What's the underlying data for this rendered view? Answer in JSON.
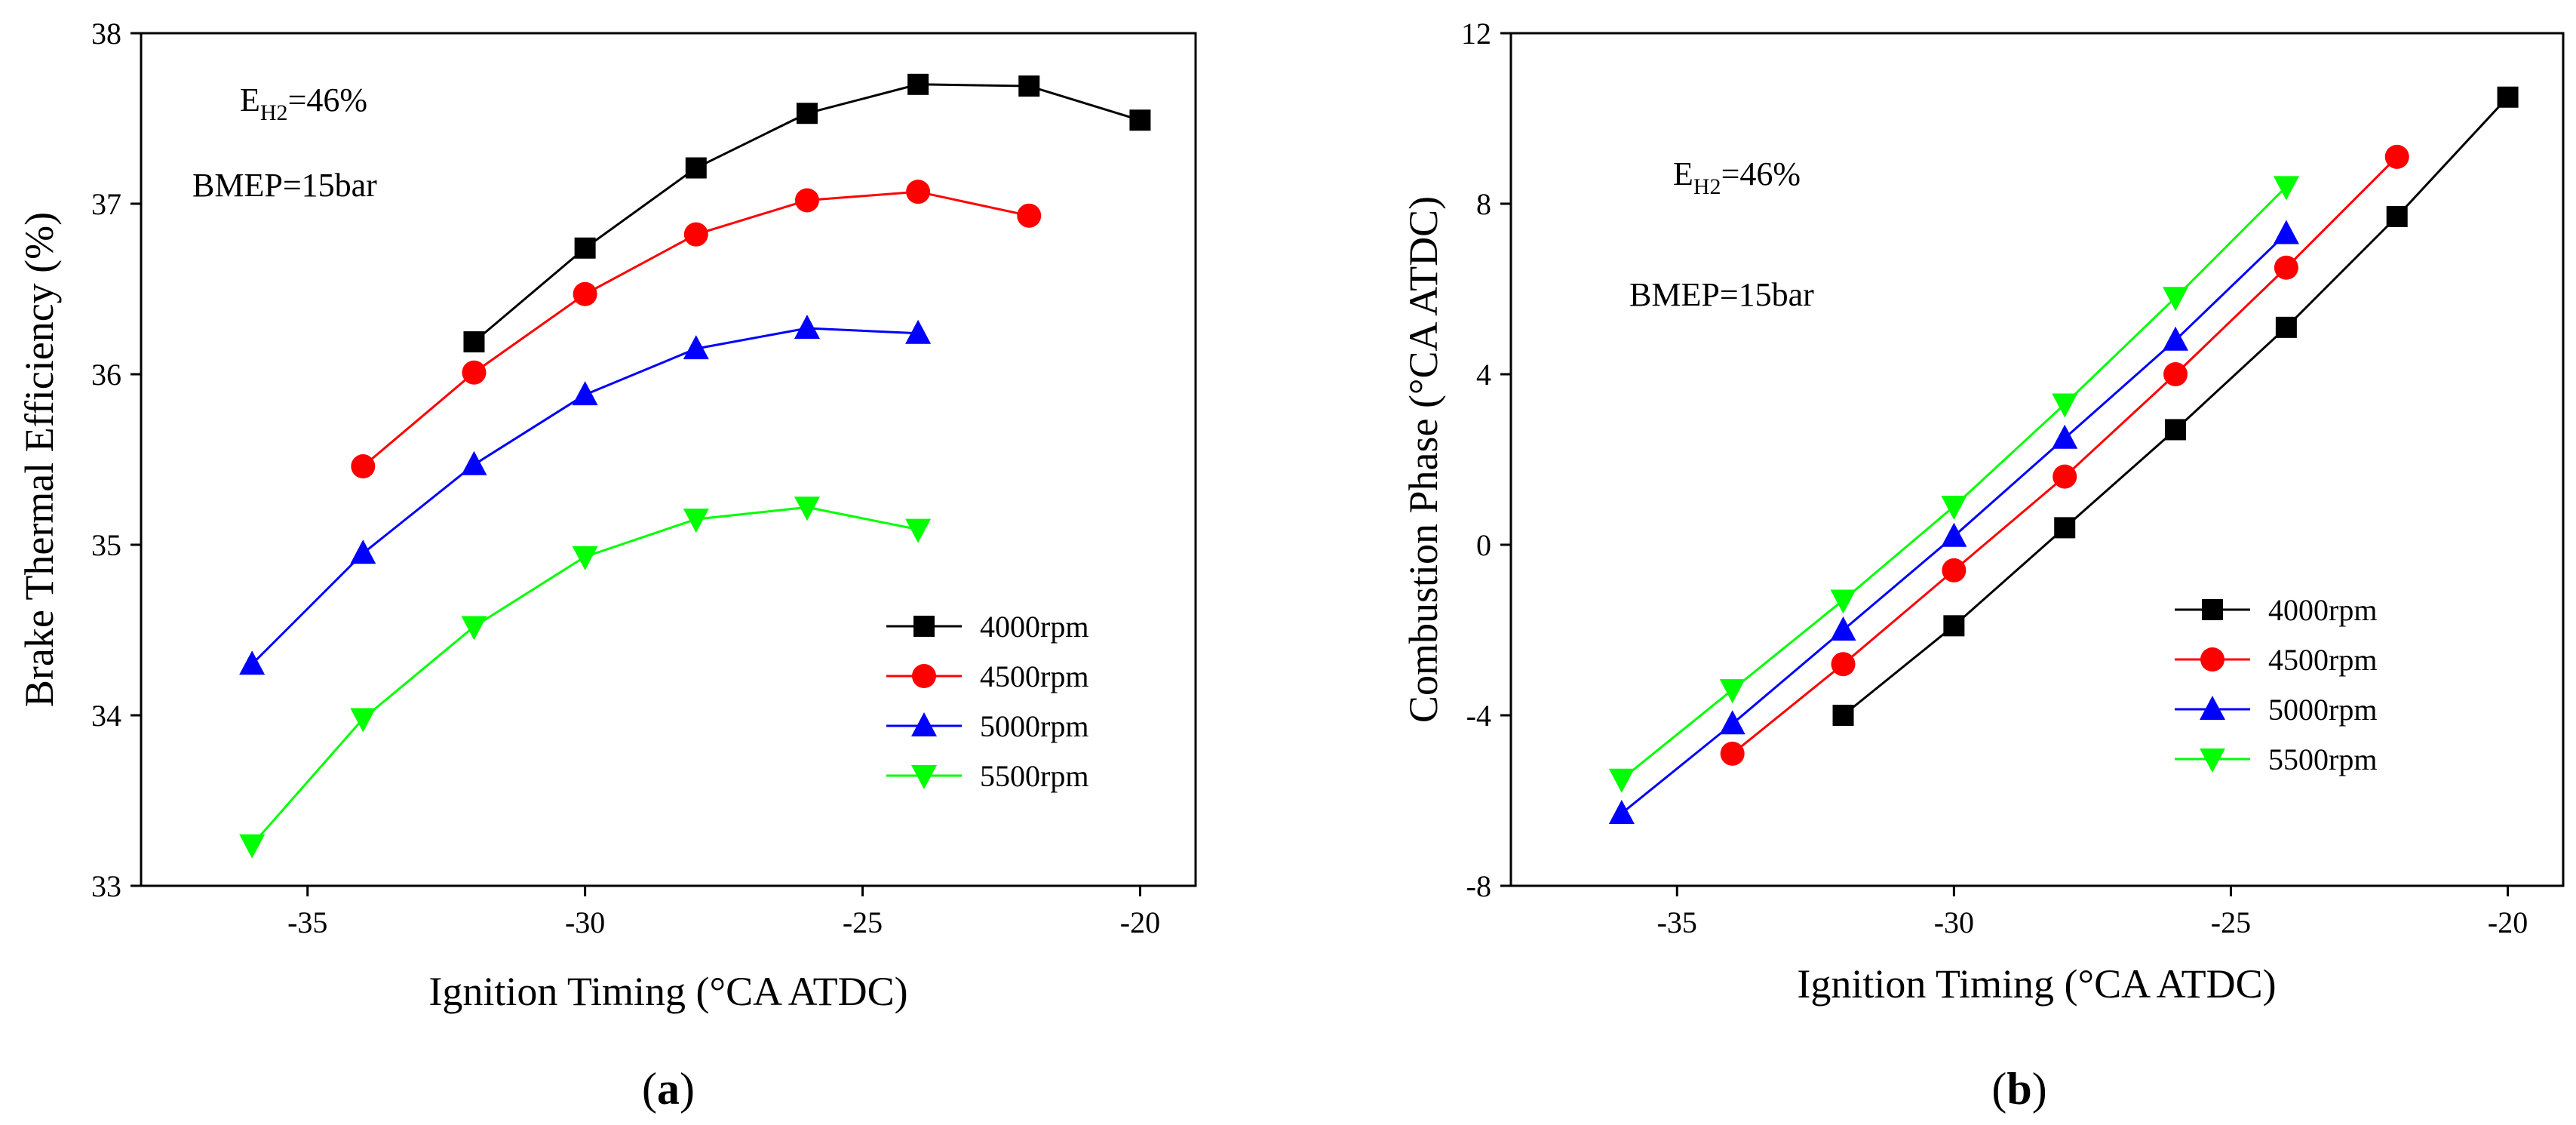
{
  "figure": {
    "panels": [
      "a",
      "b"
    ]
  },
  "chart_data": [
    {
      "id": "a",
      "type": "line",
      "panel_label": "a",
      "title": "",
      "xlabel": "Ignition Timing (°CA ATDC)",
      "ylabel": "Brake Thermal Efficiency (%)",
      "xlim": [
        -38,
        -19
      ],
      "ylim": [
        33,
        38
      ],
      "xticks": [
        -35,
        -30,
        -25,
        -20
      ],
      "yticks": [
        33,
        34,
        35,
        36,
        37,
        38
      ],
      "xtick_labels": [
        "-35",
        "-30",
        "-25",
        "-20"
      ],
      "ytick_labels": [
        "33",
        "34",
        "35",
        "36",
        "37",
        "38"
      ],
      "annotations": [
        {
          "main": "E",
          "sub": "H2",
          "rest": "=46%"
        },
        {
          "main": "BMEP=15bar",
          "sub": "",
          "rest": ""
        }
      ],
      "legend_position": "right",
      "series": [
        {
          "name": "4000rpm",
          "color": "#000000",
          "marker": "square",
          "x": [
            -32,
            -30,
            -28,
            -26,
            -24,
            -22,
            -20
          ],
          "y": [
            36.19,
            36.74,
            37.21,
            37.53,
            37.7,
            37.69,
            37.49
          ]
        },
        {
          "name": "4500rpm",
          "color": "#ff0000",
          "marker": "circle",
          "x": [
            -34,
            -32,
            -30,
            -28,
            -26,
            -24,
            -22
          ],
          "y": [
            35.46,
            36.01,
            36.47,
            36.82,
            37.02,
            37.07,
            36.93
          ]
        },
        {
          "name": "5000rpm",
          "color": "#0000ff",
          "marker": "triangle-up",
          "x": [
            -36,
            -34,
            -32,
            -30,
            -28,
            -26,
            -24
          ],
          "y": [
            34.3,
            34.95,
            35.47,
            35.88,
            36.15,
            36.27,
            36.24
          ]
        },
        {
          "name": "5500rpm",
          "color": "#00ff00",
          "marker": "triangle-down",
          "x": [
            -36,
            -34,
            -32,
            -30,
            -28,
            -26,
            -24
          ],
          "y": [
            33.24,
            33.98,
            34.52,
            34.93,
            35.15,
            35.22,
            35.09
          ]
        }
      ]
    },
    {
      "id": "b",
      "type": "line",
      "panel_label": "b",
      "title": "",
      "xlabel": "Ignition Timing (°CA ATDC)",
      "ylabel": "Combustion Phase (°CA ATDC)",
      "xlim": [
        -38,
        -19
      ],
      "ylim": [
        -8,
        12
      ],
      "xticks": [
        -35,
        -30,
        -25,
        -20
      ],
      "yticks": [
        -8,
        -4,
        0,
        4,
        8,
        12
      ],
      "xtick_labels": [
        "-35",
        "-30",
        "-25",
        "-20"
      ],
      "ytick_labels": [
        "-8",
        "-4",
        "0",
        "4",
        "8",
        "12"
      ],
      "annotations": [
        {
          "main": "E",
          "sub": "H2",
          "rest": "=46%"
        },
        {
          "main": "BMEP=15bar",
          "sub": "",
          "rest": ""
        }
      ],
      "legend_position": "lower-right",
      "series": [
        {
          "name": "4000rpm",
          "color": "#000000",
          "marker": "square",
          "x": [
            -32,
            -30,
            -28,
            -26,
            -24,
            -22,
            -20
          ],
          "y": [
            -4.0,
            -1.9,
            0.4,
            2.7,
            5.1,
            7.7,
            10.5
          ]
        },
        {
          "name": "4500rpm",
          "color": "#ff0000",
          "marker": "circle",
          "x": [
            -34,
            -32,
            -30,
            -28,
            -26,
            -24,
            -22
          ],
          "y": [
            -4.9,
            -2.8,
            -0.6,
            1.6,
            4.0,
            6.5,
            9.1
          ]
        },
        {
          "name": "5000rpm",
          "color": "#0000ff",
          "marker": "triangle-up",
          "x": [
            -36,
            -34,
            -32,
            -30,
            -28,
            -26,
            -24
          ],
          "y": [
            -6.3,
            -4.2,
            -2.0,
            0.2,
            2.5,
            4.8,
            7.3
          ]
        },
        {
          "name": "5500rpm",
          "color": "#00ff00",
          "marker": "triangle-down",
          "x": [
            -36,
            -34,
            -32,
            -30,
            -28,
            -26,
            -24
          ],
          "y": [
            -5.5,
            -3.4,
            -1.3,
            0.9,
            3.3,
            5.8,
            8.4
          ]
        }
      ]
    }
  ]
}
